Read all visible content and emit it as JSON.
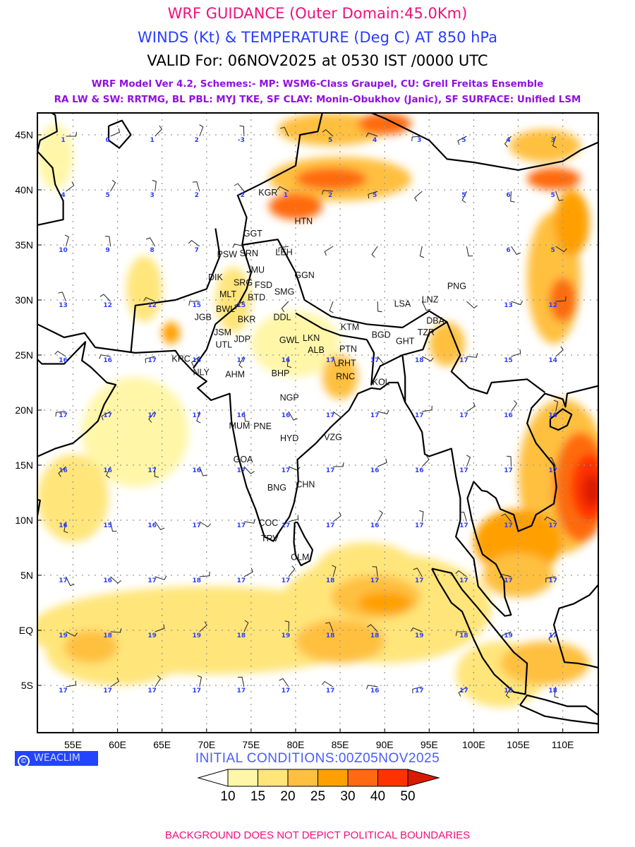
{
  "header": {
    "title": "WRF GUIDANCE (Outer Domain:45.0Km)",
    "subtitle": "WINDS (Kt) & TEMPERATURE (Deg C) AT 850 hPa",
    "valid": "VALID For: 06NOV2025 at 0530 IST /0000 UTC",
    "model_line1": "WRF Model Ver 4.2, Schemes:- MP: WSM6-Class Graupel, CU: Grell Freitas Ensemble",
    "model_line2": "RA LW & SW: RRTMG, BL PBL: MYJ TKE, SF CLAY: Monin-Obukhov (Janic), SF SURFACE: Unified LSM"
  },
  "map": {
    "lon_range": [
      51,
      114
    ],
    "lat_range": [
      -9.3,
      47
    ],
    "lon_ticks": [
      {
        "v": 55,
        "label": "55E"
      },
      {
        "v": 60,
        "label": "60E"
      },
      {
        "v": 65,
        "label": "65E"
      },
      {
        "v": 70,
        "label": "70E"
      },
      {
        "v": 75,
        "label": "75E"
      },
      {
        "v": 80,
        "label": "80E"
      },
      {
        "v": 85,
        "label": "85E"
      },
      {
        "v": 90,
        "label": "90E"
      },
      {
        "v": 95,
        "label": "95E"
      },
      {
        "v": 100,
        "label": "100E"
      },
      {
        "v": 105,
        "label": "105E"
      },
      {
        "v": 110,
        "label": "110E"
      }
    ],
    "lat_ticks": [
      {
        "v": 45,
        "label": "45N"
      },
      {
        "v": 40,
        "label": "40N"
      },
      {
        "v": 35,
        "label": "35N"
      },
      {
        "v": 30,
        "label": "30N"
      },
      {
        "v": 25,
        "label": "25N"
      },
      {
        "v": 20,
        "label": "20N"
      },
      {
        "v": 15,
        "label": "15N"
      },
      {
        "v": 10,
        "label": "10N"
      },
      {
        "v": 5,
        "label": "5N"
      },
      {
        "v": 0,
        "label": "EQ"
      },
      {
        "v": -5,
        "label": "5S"
      }
    ],
    "temperature_grid": {
      "lons": [
        55,
        60,
        65,
        70,
        75,
        80,
        85,
        90,
        95,
        100,
        105,
        110
      ],
      "rows": [
        {
          "lat": 45,
          "values": [
            1,
            0,
            1,
            2,
            -3,
            null,
            5,
            4,
            3,
            5,
            4,
            3
          ]
        },
        {
          "lat": 40,
          "values": [
            4,
            5,
            3,
            2,
            -2,
            1,
            2,
            5,
            null,
            5,
            6,
            5
          ]
        },
        {
          "lat": 35,
          "values": [
            10,
            9,
            8,
            7,
            null,
            null,
            null,
            null,
            null,
            null,
            6,
            5
          ]
        },
        {
          "lat": 30,
          "values": [
            13,
            12,
            12,
            15,
            15,
            null,
            null,
            null,
            null,
            null,
            13,
            12
          ]
        },
        {
          "lat": 25,
          "values": [
            16,
            16,
            17,
            16,
            17,
            16,
            17,
            17,
            18,
            17,
            15,
            14
          ]
        },
        {
          "lat": 20,
          "values": [
            17,
            17,
            17,
            17,
            16,
            16,
            17,
            17,
            17,
            17,
            16,
            16
          ]
        },
        {
          "lat": 15,
          "values": [
            16,
            16,
            17,
            16,
            17,
            17,
            17,
            16,
            16,
            17,
            17,
            17
          ]
        },
        {
          "lat": 10,
          "values": [
            16,
            15,
            16,
            17,
            17,
            17,
            17,
            16,
            17,
            17,
            17,
            17
          ]
        },
        {
          "lat": 5,
          "values": [
            17,
            16,
            17,
            18,
            17,
            17,
            18,
            17,
            17,
            17,
            17,
            17
          ]
        },
        {
          "lat": 0,
          "values": [
            19,
            18,
            19,
            19,
            18,
            19,
            18,
            18,
            19,
            18,
            19,
            17
          ]
        },
        {
          "lat": -5,
          "values": [
            17,
            17,
            17,
            17,
            17,
            17,
            17,
            16,
            17,
            17,
            18,
            18
          ]
        }
      ]
    },
    "wind_shading": [
      {
        "lon": 70,
        "lat": 0,
        "rlon": 20,
        "rlat": 4,
        "level": 15
      },
      {
        "lon": 90,
        "lat": 2,
        "rlon": 12,
        "rlat": 5,
        "level": 15
      },
      {
        "lon": 60,
        "lat": -2,
        "rlon": 8,
        "rlat": 3,
        "level": 15
      },
      {
        "lon": 62,
        "lat": 18,
        "rlon": 6,
        "rlat": 5,
        "level": 10
      },
      {
        "lon": 55,
        "lat": 12,
        "rlon": 4,
        "rlat": 4,
        "level": 15
      },
      {
        "lon": 62,
        "lat": -2,
        "rlon": 6,
        "rlat": 2,
        "level": 15
      },
      {
        "lon": 57,
        "lat": -1.5,
        "rlon": 3,
        "rlat": 1.5,
        "level": 20
      },
      {
        "lon": 88,
        "lat": 5,
        "rlon": 6,
        "rlat": 3,
        "level": 15
      },
      {
        "lon": 89,
        "lat": 3,
        "rlon": 5,
        "rlat": 2,
        "level": 20
      },
      {
        "lon": 90,
        "lat": 2.5,
        "rlon": 3,
        "rlat": 1,
        "level": 25
      },
      {
        "lon": 85,
        "lat": -1,
        "rlon": 5,
        "rlat": 2,
        "level": 20
      },
      {
        "lon": 80,
        "lat": 26,
        "rlon": 5,
        "rlat": 3,
        "level": 10
      },
      {
        "lon": 73,
        "lat": 30,
        "rlon": 2,
        "rlat": 3,
        "level": 15
      },
      {
        "lon": 85,
        "lat": 23,
        "rlon": 2,
        "rlat": 2,
        "level": 20
      },
      {
        "lon": 97,
        "lat": 26,
        "rlon": 2,
        "rlat": 2,
        "level": 20
      },
      {
        "lon": 110,
        "lat": 14,
        "rlon": 5,
        "rlat": 7,
        "level": 20
      },
      {
        "lon": 112,
        "lat": 13,
        "rlon": 3,
        "rlat": 5,
        "level": 30
      },
      {
        "lon": 113,
        "lat": 13,
        "rlon": 2,
        "rlat": 3,
        "level": 40
      },
      {
        "lon": 113.3,
        "lat": 12.7,
        "rlon": 1,
        "rlat": 1.5,
        "level": 50
      },
      {
        "lon": 105,
        "lat": 8,
        "rlon": 5,
        "rlat": 3,
        "level": 25
      },
      {
        "lon": 105,
        "lat": 5,
        "rlon": 4,
        "rlat": 2,
        "level": 20
      },
      {
        "lon": 103,
        "lat": -4,
        "rlon": 5,
        "rlat": 3,
        "level": 15
      },
      {
        "lon": 108,
        "lat": -3,
        "rlon": 5,
        "rlat": 2,
        "level": 20
      },
      {
        "lon": 109,
        "lat": 32,
        "rlon": 3,
        "rlat": 6,
        "level": 20
      },
      {
        "lon": 110,
        "lat": 30,
        "rlon": 1.5,
        "rlat": 2,
        "level": 30
      },
      {
        "lon": 111,
        "lat": 37,
        "rlon": 2,
        "rlat": 3,
        "level": 25
      },
      {
        "lon": 108,
        "lat": 44,
        "rlon": 4,
        "rlat": 1.5,
        "level": 20
      },
      {
        "lon": 109,
        "lat": 41,
        "rlon": 3,
        "rlat": 1,
        "level": 30
      },
      {
        "lon": 85,
        "lat": 41,
        "rlon": 8,
        "rlat": 2,
        "level": 20
      },
      {
        "lon": 84,
        "lat": 41,
        "rlon": 4,
        "rlat": 1,
        "level": 30
      },
      {
        "lon": 80,
        "lat": 38.5,
        "rlon": 3,
        "rlat": 1.2,
        "level": 30
      },
      {
        "lon": 84,
        "lat": 45.5,
        "rlon": 6,
        "rlat": 1.5,
        "level": 20
      },
      {
        "lon": 90,
        "lat": 46,
        "rlon": 3,
        "rlat": 1,
        "level": 30
      },
      {
        "lon": 63,
        "lat": 31,
        "rlon": 2,
        "rlat": 3,
        "level": 15
      },
      {
        "lon": 66,
        "lat": 27,
        "rlon": 1,
        "rlat": 1,
        "level": 25
      },
      {
        "lon": 53,
        "lat": 43,
        "rlon": 2,
        "rlat": 3,
        "level": 10
      }
    ],
    "cities": [
      {
        "code": "KGR",
        "lon": 76.9,
        "lat": 39.8
      },
      {
        "code": "HTN",
        "lon": 80.9,
        "lat": 37.2
      },
      {
        "code": "GGT",
        "lon": 75.2,
        "lat": 36.1
      },
      {
        "code": "PSW",
        "lon": 72.3,
        "lat": 34.2
      },
      {
        "code": "SRN",
        "lon": 74.4,
        "lat": 34.3
      },
      {
        "code": "LEH",
        "lon": 78.7,
        "lat": 34.4
      },
      {
        "code": "JMU",
        "lon": 75.5,
        "lat": 32.8
      },
      {
        "code": "GGN",
        "lon": 81.0,
        "lat": 32.3
      },
      {
        "code": "DIK",
        "lon": 71.0,
        "lat": 32.1
      },
      {
        "code": "SRG",
        "lon": 74.1,
        "lat": 32.2
      },
      {
        "code": "FSD",
        "lon": 73.9,
        "lat": 31.4
      },
      {
        "code": "MLT",
        "lon": 72.4,
        "lat": 30.4
      },
      {
        "code": "BTD",
        "lon": 74.9,
        "lat": 30.3
      },
      {
        "code": "SMG",
        "lon": 76.6,
        "lat": 30.8
      },
      {
        "code": "BWL",
        "lon": 72.6,
        "lat": 29.6
      },
      {
        "code": "JGB",
        "lon": 69.6,
        "lat": 28.5
      },
      {
        "code": "BKR",
        "lon": 74.5,
        "lat": 28.3
      },
      {
        "code": "DDL",
        "lon": 78.5,
        "lat": 28.5
      },
      {
        "code": "JSM",
        "lon": 71.8,
        "lat": 27.1
      },
      {
        "code": "JDP",
        "lon": 74.0,
        "lat": 26.5
      },
      {
        "code": "UTL",
        "lon": 72.3,
        "lat": 26.0
      },
      {
        "code": "KRC",
        "lon": 68.2,
        "lat": 24.7
      },
      {
        "code": "NLY",
        "lon": 69.4,
        "lat": 23.5
      },
      {
        "code": "AHM",
        "lon": 73.2,
        "lat": 23.3
      },
      {
        "code": "BHP",
        "lon": 78.3,
        "lat": 23.4
      },
      {
        "code": "GWL",
        "lon": 79.3,
        "lat": 26.4
      },
      {
        "code": "LKN",
        "lon": 81.4,
        "lat": 26.6
      },
      {
        "code": "ALB",
        "lon": 82.3,
        "lat": 25.5
      },
      {
        "code": "PTN",
        "lon": 85.9,
        "lat": 25.6
      },
      {
        "code": "RHT",
        "lon": 85.3,
        "lat": 24.7
      },
      {
        "code": "RNC",
        "lon": 85.6,
        "lat": 23.7
      },
      {
        "code": "KTM",
        "lon": 86.1,
        "lat": 27.6
      },
      {
        "code": "KOL",
        "lon": 89.6,
        "lat": 22.6
      },
      {
        "code": "BGD",
        "lon": 89.6,
        "lat": 26.9
      },
      {
        "code": "GHT",
        "lon": 92.3,
        "lat": 26.3
      },
      {
        "code": "TZR",
        "lon": 94.3,
        "lat": 27.1
      },
      {
        "code": "DBA",
        "lon": 95.7,
        "lat": 27.8
      },
      {
        "code": "LSA",
        "lon": 92.0,
        "lat": 29.7
      },
      {
        "code": "LNZ",
        "lon": 95.1,
        "lat": 30.1
      },
      {
        "code": "PNG",
        "lon": 98.1,
        "lat": 31.3
      },
      {
        "code": "NGP",
        "lon": 79.3,
        "lat": 21.2
      },
      {
        "code": "MUM",
        "lon": 73.7,
        "lat": 19.2
      },
      {
        "code": "PNE",
        "lon": 74.5,
        "lat": 18.6
      },
      {
        "code": "HYD",
        "lon": 79.3,
        "lat": 17.5
      },
      {
        "code": "VZG",
        "lon": 84.2,
        "lat": 17.6
      },
      {
        "code": "GOA",
        "lon": 74.1,
        "lat": 15.4
      },
      {
        "code": "BNG",
        "lon": 77.9,
        "lat": 13.0
      },
      {
        "code": "CHN",
        "lon": 81.1,
        "lat": 13.3
      },
      {
        "code": "COC",
        "lon": 77.3,
        "lat": 9.8
      },
      {
        "code": "TRV",
        "lon": 77.1,
        "lat": 8.4
      },
      {
        "code": "CLM",
        "lon": 80.5,
        "lat": 6.7
      }
    ]
  },
  "legend": {
    "colors": [
      "#ffffff",
      "#fff6a8",
      "#ffe57a",
      "#ffc040",
      "#ffa000",
      "#ff6a10",
      "#ff3300",
      "#d81a00"
    ],
    "labels": [
      "10",
      "15",
      "20",
      "25",
      "30",
      "40",
      "50"
    ]
  },
  "footer": {
    "brand": "WEACLIM",
    "brand_symbol": "©",
    "initial_conditions": "INITIAL CONDITIONS:00Z05NOV2025",
    "disclaimer": "BACKGROUND DOES NOT DEPICT POLITICAL BOUNDARIES"
  }
}
